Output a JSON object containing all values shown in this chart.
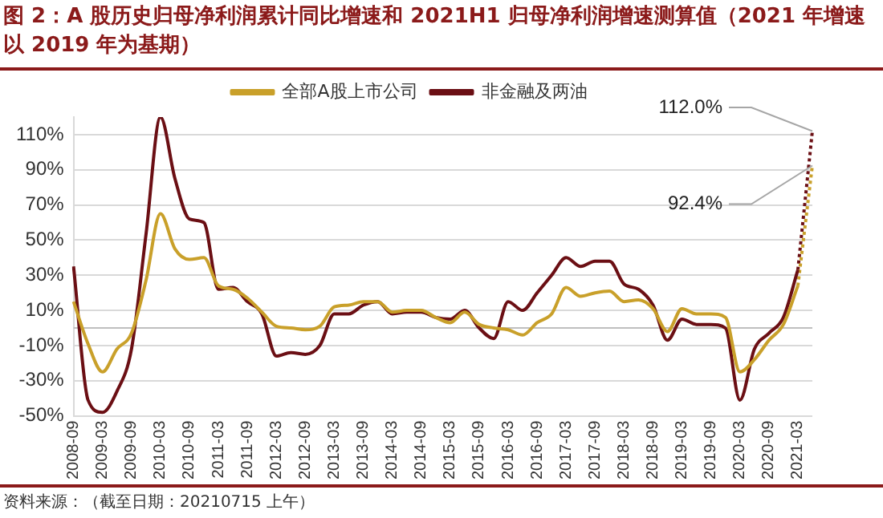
{
  "chart_data": {
    "type": "line",
    "title": "图 2：A 股历史归母净利润累计同比增速和 2021H1 归母净利润增速测算值（2021 年增速以 2019 年为基期）",
    "categories": [
      "2008-09",
      null,
      "2009-03",
      null,
      "2009-09",
      null,
      "2010-03",
      null,
      "2010-09",
      null,
      "2011-03",
      null,
      "2011-09",
      null,
      "2012-03",
      null,
      "2012-09",
      null,
      "2013-03",
      null,
      "2013-09",
      null,
      "2014-03",
      null,
      "2014-09",
      null,
      "2015-03",
      null,
      "2015-09",
      null,
      "2016-03",
      null,
      "2016-09",
      null,
      "2017-03",
      null,
      "2017-09",
      null,
      "2018-03",
      null,
      "2018-09",
      null,
      "2019-03",
      null,
      "2019-09",
      null,
      "2020-03",
      null,
      "2020-09",
      null,
      "2021-03",
      null
    ],
    "series": [
      {
        "name": "全部A股上市公司",
        "color": "#c9a02a",
        "values": [
          15,
          -9,
          -25,
          -12,
          -3,
          27,
          65,
          45,
          39,
          40,
          24,
          22,
          17,
          9,
          1,
          0,
          -1,
          1,
          12,
          13,
          15,
          15,
          9,
          10,
          10,
          6,
          3,
          9,
          2,
          0,
          -1,
          -4,
          3,
          8,
          23,
          18,
          20,
          21,
          15,
          16,
          11,
          -2,
          11,
          8,
          8,
          6,
          -25,
          -18,
          -7,
          2,
          24,
          null
        ]
      },
      {
        "name": "非金融及两油",
        "color": "#6b0f14",
        "values": [
          35,
          -41,
          -48,
          -36,
          -12,
          53,
          120,
          85,
          62,
          60,
          22,
          23,
          15,
          8,
          -16,
          -14,
          -15,
          -10,
          8,
          8,
          13,
          15,
          8,
          9,
          9,
          6,
          5,
          10,
          0,
          -6,
          15,
          10,
          20,
          30,
          40,
          35,
          38,
          38,
          25,
          22,
          13,
          -7,
          5,
          2,
          2,
          0,
          -41,
          -12,
          -3,
          6,
          33,
          null
        ]
      },
      {
        "color": "#c9a02a",
        "line_style": "dotted",
        "values": [
          null,
          null,
          null,
          null,
          null,
          null,
          null,
          null,
          null,
          null,
          null,
          null,
          null,
          null,
          null,
          null,
          null,
          null,
          null,
          null,
          null,
          null,
          null,
          null,
          null,
          null,
          null,
          null,
          null,
          null,
          null,
          null,
          null,
          null,
          null,
          null,
          null,
          null,
          null,
          null,
          null,
          null,
          null,
          null,
          null,
          null,
          null,
          null,
          null,
          null,
          24,
          92.4
        ],
        "value_labels": [
          null,
          null,
          null,
          null,
          null,
          null,
          null,
          null,
          null,
          null,
          null,
          null,
          null,
          null,
          null,
          null,
          null,
          null,
          null,
          null,
          null,
          null,
          null,
          null,
          null,
          null,
          null,
          null,
          null,
          null,
          null,
          null,
          null,
          null,
          null,
          null,
          null,
          null,
          null,
          null,
          null,
          null,
          null,
          null,
          null,
          null,
          null,
          null,
          null,
          null,
          null,
          "92.4%"
        ]
      },
      {
        "color": "#6b0f14",
        "line_style": "dotted",
        "values": [
          null,
          null,
          null,
          null,
          null,
          null,
          null,
          null,
          null,
          null,
          null,
          null,
          null,
          null,
          null,
          null,
          null,
          null,
          null,
          null,
          null,
          null,
          null,
          null,
          null,
          null,
          null,
          null,
          null,
          null,
          null,
          null,
          null,
          null,
          null,
          null,
          null,
          null,
          null,
          null,
          null,
          null,
          null,
          null,
          null,
          null,
          null,
          null,
          null,
          null,
          33,
          112.0
        ],
        "value_labels": [
          null,
          null,
          null,
          null,
          null,
          null,
          null,
          null,
          null,
          null,
          null,
          null,
          null,
          null,
          null,
          null,
          null,
          null,
          null,
          null,
          null,
          null,
          null,
          null,
          null,
          null,
          null,
          null,
          null,
          null,
          null,
          null,
          null,
          null,
          null,
          null,
          null,
          null,
          null,
          null,
          null,
          null,
          null,
          null,
          null,
          null,
          null,
          null,
          null,
          null,
          null,
          "112.0%"
        ]
      }
    ],
    "ylim": [
      -50,
      120
    ],
    "yticks": [
      {
        "value": -50,
        "label": "-50%"
      },
      {
        "value": -30,
        "label": "-30%"
      },
      {
        "value": -10,
        "label": "-10%"
      },
      {
        "value": 10,
        "label": "10%"
      },
      {
        "value": 30,
        "label": "30%"
      },
      {
        "value": 50,
        "label": "50%"
      },
      {
        "value": 70,
        "label": "70%"
      },
      {
        "value": 90,
        "label": "90%"
      },
      {
        "value": 110,
        "label": "110%"
      }
    ],
    "ref_lines": [
      {
        "axis": "y",
        "value": 0,
        "color": "#bfbfbf"
      }
    ],
    "grid": "y",
    "legend": "top",
    "marker": "none",
    "line_style": "solid",
    "annotations": [
      "资料来源：（截至日期：20210715 上午）"
    ]
  }
}
